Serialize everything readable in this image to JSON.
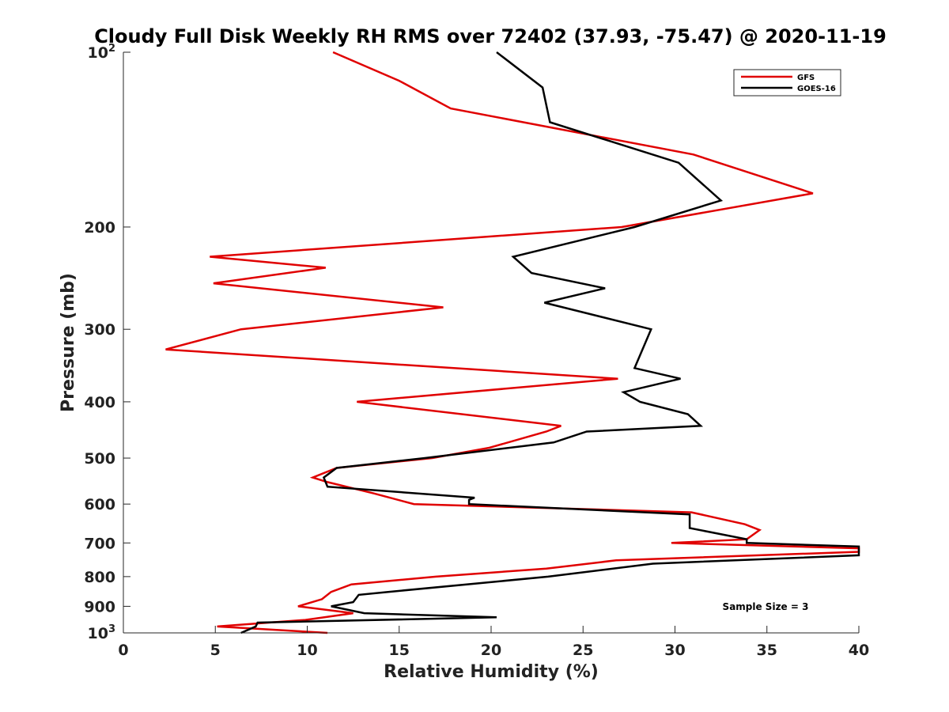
{
  "chart_data": {
    "type": "line",
    "title": "Cloudy Full Disk Weekly RH RMS over 72402 (37.93, -75.47) @ 2020-11-19",
    "xlabel": "Relative Humidity (%)",
    "ylabel": "Pressure (mb)",
    "xlim": [
      0,
      40
    ],
    "ylim": [
      100,
      1000
    ],
    "y_scale": "log",
    "y_inverted": true,
    "grid": false,
    "legend_position": "top-right",
    "x_ticks": [
      "0",
      "5",
      "10",
      "15",
      "20",
      "25",
      "30",
      "35",
      "40"
    ],
    "y_ticks": [
      {
        "value": 100,
        "base": "10",
        "exp": "2"
      },
      {
        "value": 200,
        "label": "200"
      },
      {
        "value": 300,
        "label": "300"
      },
      {
        "value": 400,
        "label": "400"
      },
      {
        "value": 500,
        "label": "500"
      },
      {
        "value": 600,
        "label": "600"
      },
      {
        "value": 700,
        "label": "700"
      },
      {
        "value": 800,
        "label": "800"
      },
      {
        "value": 900,
        "label": "900"
      },
      {
        "value": 1000,
        "base": "10",
        "exp": "3"
      }
    ],
    "annotation": "Sample Size = 3",
    "series": [
      {
        "name": "GFS",
        "color": "#e00000",
        "points": [
          [
            11.1,
            1000
          ],
          [
            5.1,
            975
          ],
          [
            9.9,
            950
          ],
          [
            12.5,
            925
          ],
          [
            9.5,
            900
          ],
          [
            10.8,
            875
          ],
          [
            11.3,
            850
          ],
          [
            12.4,
            825
          ],
          [
            17.0,
            800
          ],
          [
            23.0,
            775
          ],
          [
            26.8,
            750
          ],
          [
            40.0,
            725
          ],
          [
            40.0,
            715
          ],
          [
            29.8,
            700
          ],
          [
            33.9,
            690
          ],
          [
            34.6,
            665
          ],
          [
            33.8,
            650
          ],
          [
            30.9,
            620
          ],
          [
            15.8,
            600
          ],
          [
            13.6,
            575
          ],
          [
            11.1,
            550
          ],
          [
            10.3,
            540
          ],
          [
            11.6,
            520
          ],
          [
            16.8,
            500
          ],
          [
            19.9,
            480
          ],
          [
            23.0,
            450
          ],
          [
            23.8,
            440
          ],
          [
            12.7,
            400
          ],
          [
            26.9,
            365
          ],
          [
            2.3,
            325
          ],
          [
            6.4,
            300
          ],
          [
            17.4,
            275
          ],
          [
            4.9,
            250
          ],
          [
            11.0,
            235
          ],
          [
            4.7,
            225
          ],
          [
            27.1,
            200
          ],
          [
            37.5,
            175
          ],
          [
            31.0,
            150
          ],
          [
            17.8,
            125
          ],
          [
            15.0,
            112
          ],
          [
            11.4,
            100
          ]
        ]
      },
      {
        "name": "GOES-16",
        "color": "#000000",
        "points": [
          [
            6.4,
            1000
          ],
          [
            7.2,
            975
          ],
          [
            7.3,
            960
          ],
          [
            20.3,
            940
          ],
          [
            13.1,
            925
          ],
          [
            11.3,
            900
          ],
          [
            12.5,
            885
          ],
          [
            12.8,
            860
          ],
          [
            14.4,
            850
          ],
          [
            23.1,
            800
          ],
          [
            28.8,
            760
          ],
          [
            40.0,
            735
          ],
          [
            40.0,
            710
          ],
          [
            33.9,
            700
          ],
          [
            33.9,
            690
          ],
          [
            30.8,
            660
          ],
          [
            30.8,
            625
          ],
          [
            18.8,
            600
          ],
          [
            18.8,
            590
          ],
          [
            19.1,
            585
          ],
          [
            11.1,
            560
          ],
          [
            10.9,
            540
          ],
          [
            11.6,
            520
          ],
          [
            16.4,
            500
          ],
          [
            23.4,
            470
          ],
          [
            25.2,
            450
          ],
          [
            31.4,
            440
          ],
          [
            30.7,
            420
          ],
          [
            28.1,
            400
          ],
          [
            27.2,
            385
          ],
          [
            30.3,
            365
          ],
          [
            27.8,
            350
          ],
          [
            28.7,
            300
          ],
          [
            22.9,
            270
          ],
          [
            26.2,
            255
          ],
          [
            22.2,
            240
          ],
          [
            21.2,
            225
          ],
          [
            27.8,
            200
          ],
          [
            32.5,
            180
          ],
          [
            30.2,
            155
          ],
          [
            23.2,
            132
          ],
          [
            22.8,
            115
          ],
          [
            20.3,
            100
          ]
        ]
      }
    ]
  }
}
